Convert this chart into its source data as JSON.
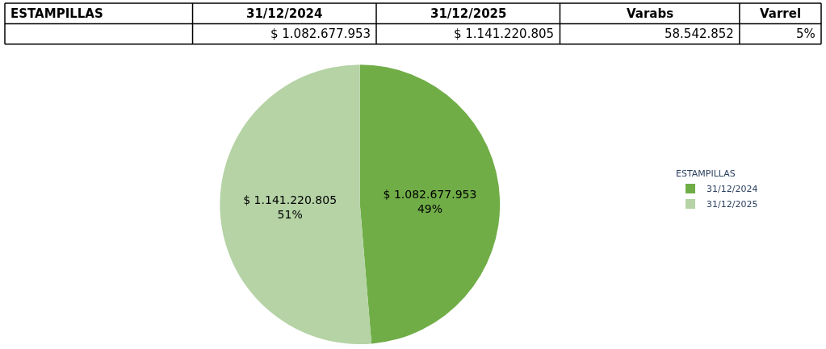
{
  "chart_data": {
    "type": "pie",
    "legend_title": "ESTAMPILLAS",
    "categories": [
      "31/12/2024",
      "31/12/2025"
    ],
    "values": [
      1082677953,
      1141220805
    ],
    "colors": [
      "#70ad47",
      "#b5d3a5"
    ],
    "value_labels": [
      "$ 1.082.677.953\n49%",
      "$ 1.141.220.805\n51%"
    ],
    "legend": "right",
    "annotations": [
      "ESTAMPILLAS",
      "31/12/2024",
      "31/12/2025",
      "Varabs",
      "Varrel",
      "$ 1.082.677.953",
      "$ 1.141.220.805",
      "58.542.852",
      "5%"
    ]
  }
}
